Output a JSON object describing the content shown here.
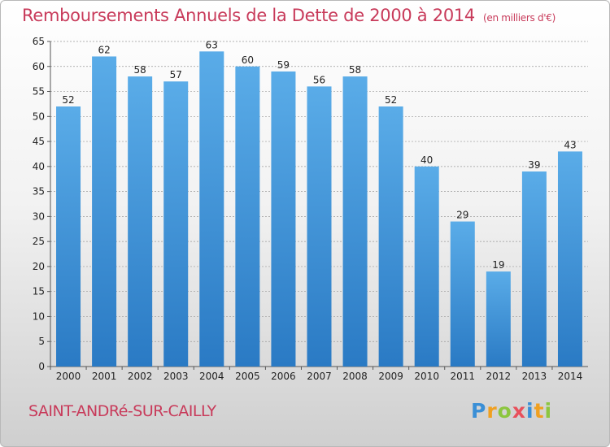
{
  "title": "Remboursements Annuels de la Dette de 2000 à 2014",
  "subtitle": "(en milliers d'€)",
  "commune": "SAINT-ANDRé-SUR-CAILLY",
  "logo": {
    "letters": [
      "P",
      "r",
      "o",
      "x",
      "i",
      "t",
      "i"
    ],
    "colors": [
      "#3a8fd6",
      "#f0a020",
      "#8cc63f",
      "#e8505b",
      "#3a8fd6",
      "#f0a020",
      "#8cc63f"
    ]
  },
  "colors": {
    "bar_top": "#5aace8",
    "bar_bottom": "#2a7ac4",
    "title": "#c83a5a",
    "grid": "#999999"
  },
  "chart_data": {
    "type": "bar",
    "title": "Remboursements Annuels de la Dette de 2000 à 2014",
    "subtitle": "(en milliers d'€)",
    "categories": [
      "2000",
      "2001",
      "2002",
      "2003",
      "2004",
      "2005",
      "2006",
      "2007",
      "2008",
      "2009",
      "2010",
      "2011",
      "2012",
      "2013",
      "2014"
    ],
    "values": [
      52,
      62,
      58,
      57,
      63,
      60,
      59,
      56,
      58,
      52,
      40,
      29,
      19,
      39,
      43
    ],
    "ylim": [
      0,
      65
    ],
    "yticks": [
      0,
      5,
      10,
      15,
      20,
      25,
      30,
      35,
      40,
      45,
      50,
      55,
      60,
      65
    ],
    "grid": "horizontal dashed",
    "xlabel": "",
    "ylabel": ""
  }
}
